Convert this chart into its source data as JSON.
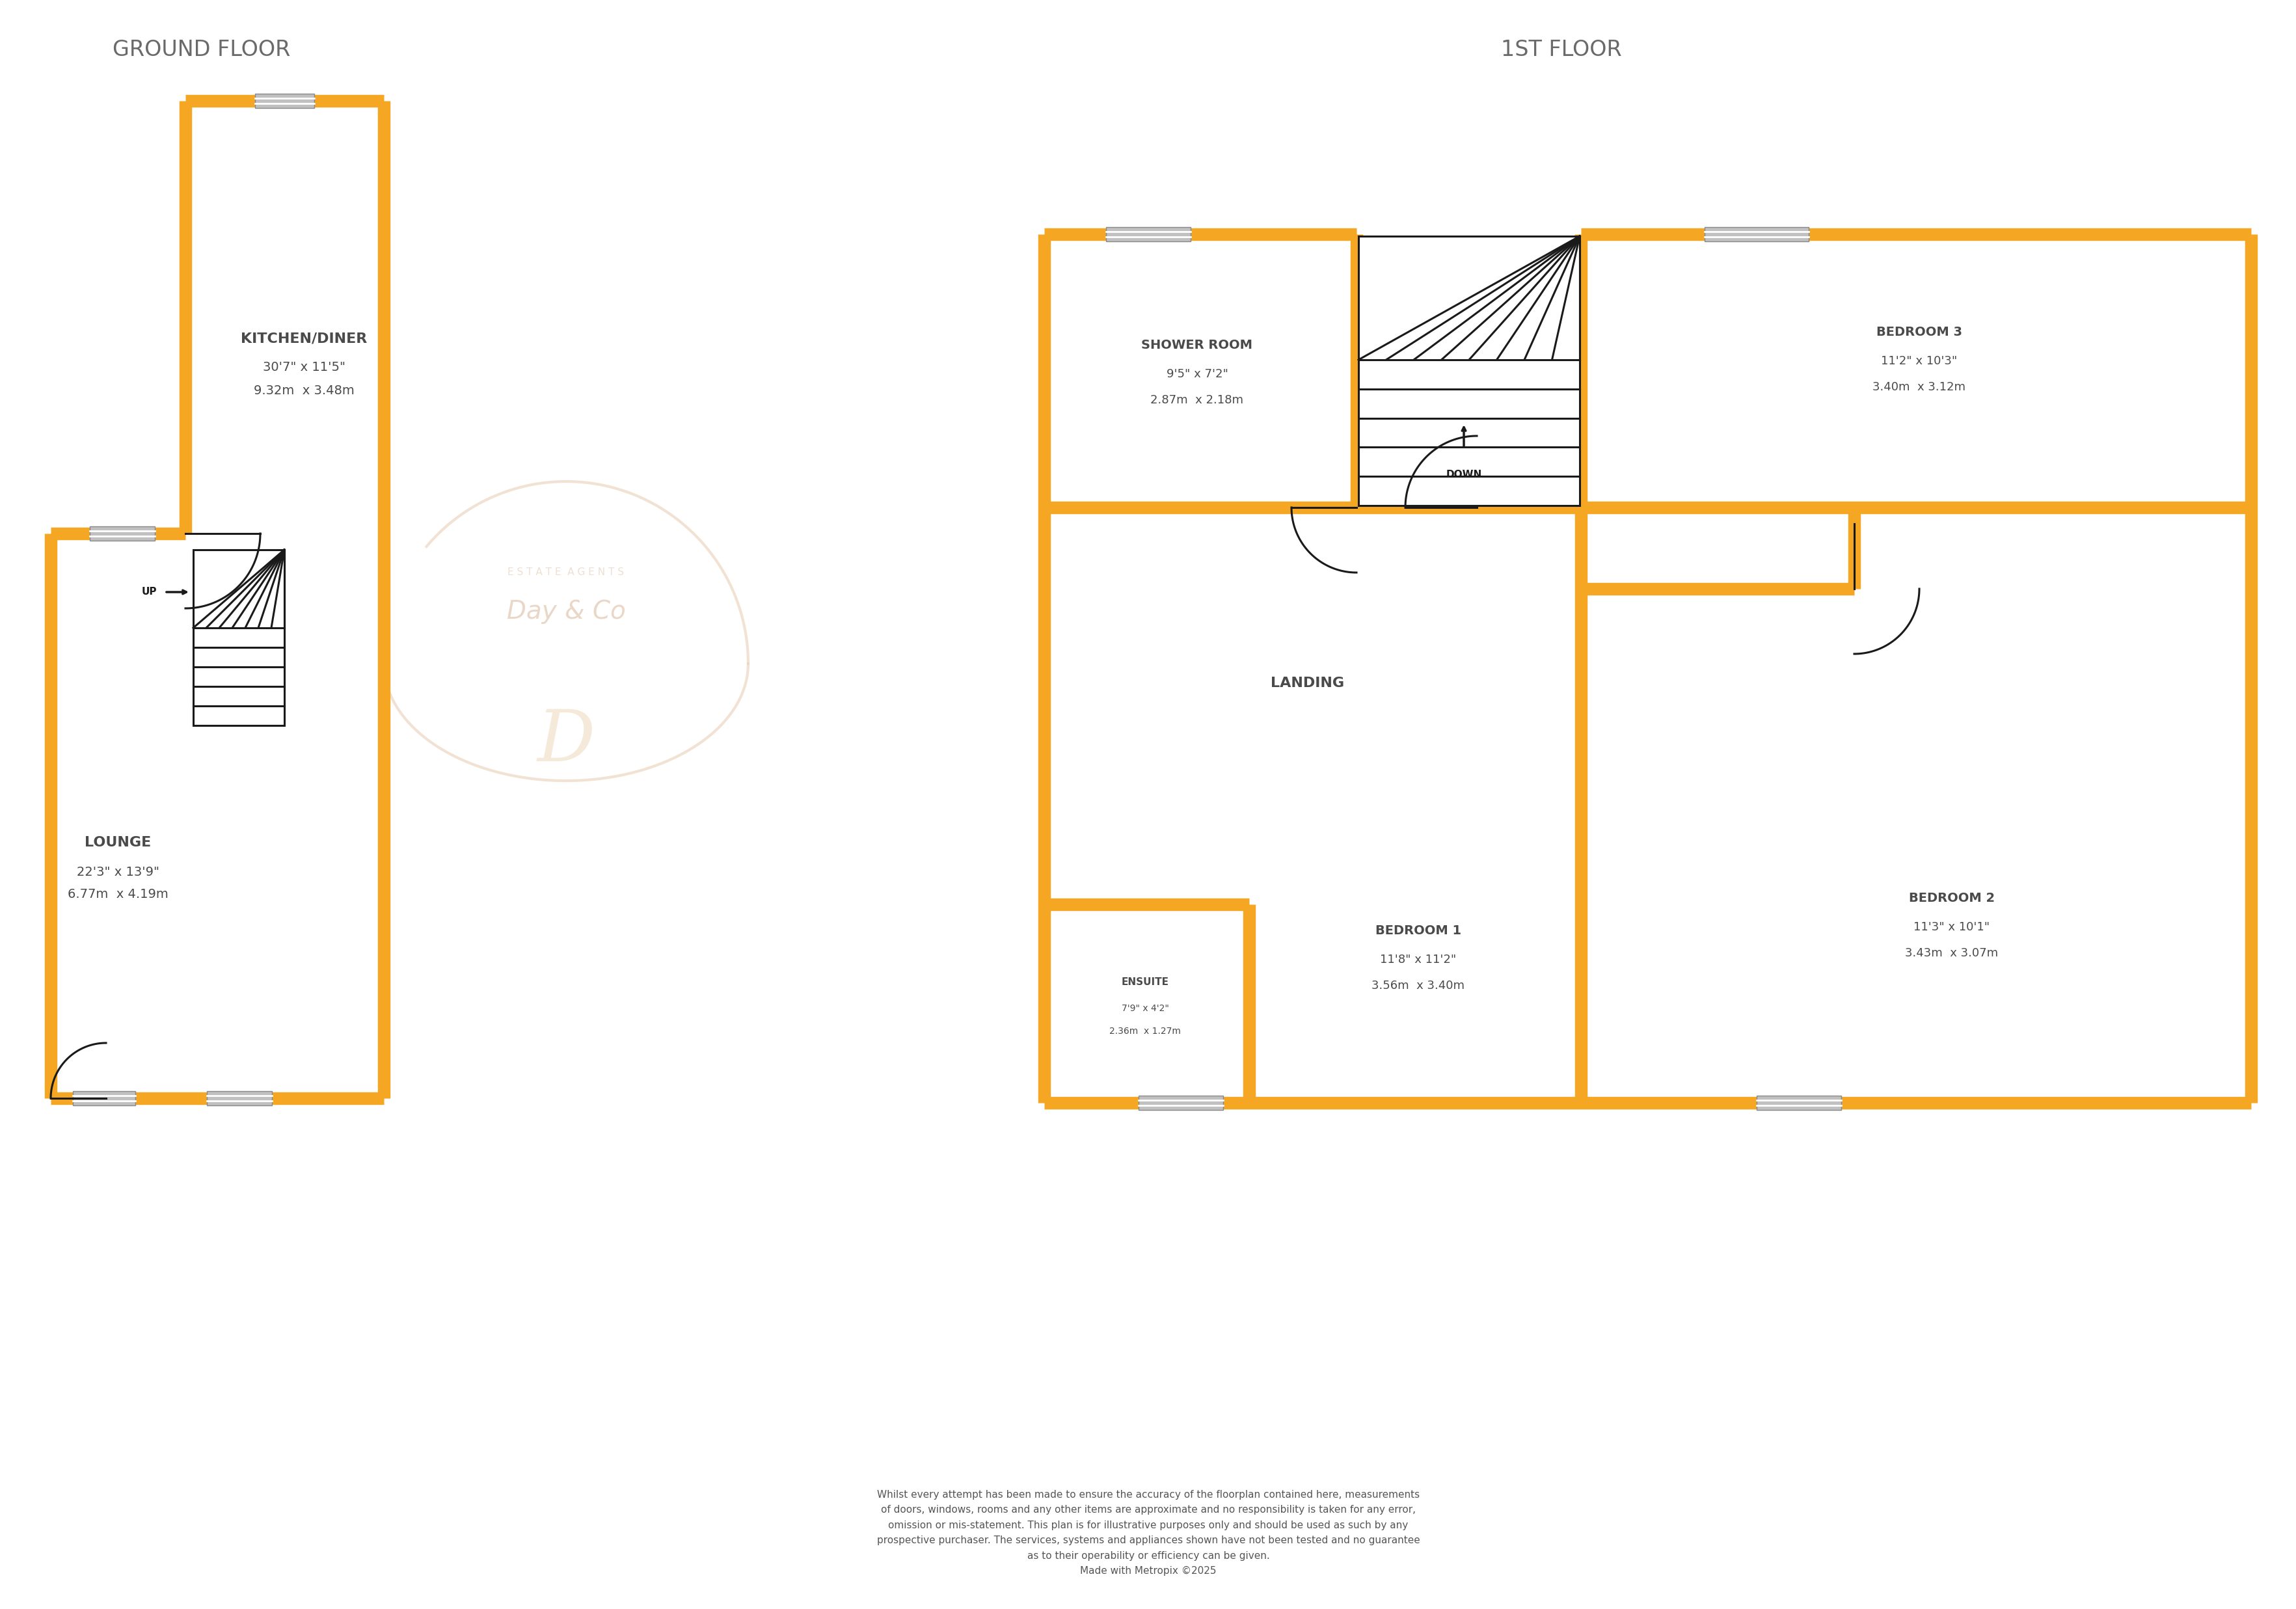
{
  "bg_color": "#ffffff",
  "orange": "#F5A623",
  "black": "#1a1a1a",
  "text_color": "#4a4a4a",
  "floor_label_color": "#6a6a6a",
  "window_face": "#c8c8c8",
  "window_line": "#ffffff",
  "title_ground": "GROUND FLOOR",
  "title_first": "1ST FLOOR",
  "disclaimer": "Whilst every attempt has been made to ensure the accuracy of the floorplan contained here, measurements\nof doors, windows, rooms and any other items are approximate and no responsibility is taken for any error,\nomission or mis-statement. This plan is for illustrative purposes only and should be used as such by any\nprospective purchaser. The services, systems and appliances shown have not been tested and no guarantee\nas to their operability or efficiency can be given.\nMade with Metropix ©2025",
  "watermark_text": "Day & Co",
  "lw_outer": 14,
  "lw_inner": 2.2,
  "win_thickness": 20
}
